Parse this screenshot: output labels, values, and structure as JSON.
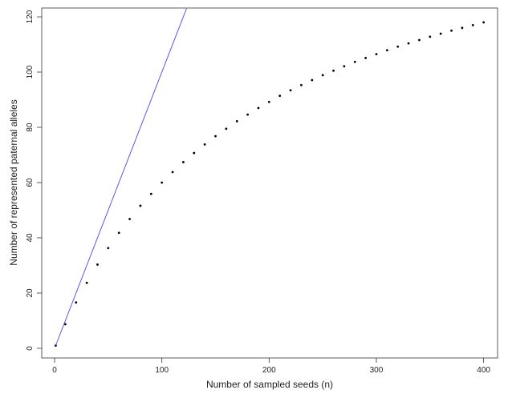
{
  "chart_data": {
    "type": "scatter",
    "x_label": "Number of sampled seeds (n)",
    "y_label": "Number of represented paternal alleles",
    "xlim": [
      -12,
      413
    ],
    "ylim": [
      -3.5,
      123.2
    ],
    "xticks": [
      0,
      100,
      200,
      300,
      400
    ],
    "yticks": [
      0,
      20,
      40,
      60,
      80,
      100,
      120
    ],
    "series": [
      {
        "type": "scatter",
        "color": "#000000",
        "x": [
          1,
          10,
          20,
          30,
          40,
          50,
          60,
          70,
          80,
          90,
          100,
          110,
          120,
          130,
          140,
          150,
          160,
          170,
          180,
          190,
          200,
          210,
          220,
          230,
          240,
          250,
          260,
          270,
          280,
          290,
          300,
          310,
          320,
          330,
          340,
          350,
          360,
          370,
          380,
          390,
          400
        ],
        "values": [
          1.0,
          8.7,
          16.6,
          23.7,
          30.3,
          36.3,
          41.8,
          46.8,
          51.6,
          55.9,
          60.0,
          63.8,
          67.4,
          70.7,
          73.8,
          76.8,
          79.5,
          82.2,
          84.6,
          87.0,
          89.2,
          91.4,
          93.4,
          95.3,
          97.1,
          98.9,
          100.5,
          102.1,
          103.7,
          105.1,
          106.5,
          107.9,
          109.2,
          110.4,
          111.6,
          112.8,
          113.9,
          115.0,
          116.0,
          117.0,
          118.0
        ]
      },
      {
        "type": "line",
        "color": "#4a4ae0",
        "x": [
          1,
          123
        ],
        "values": [
          1,
          123
        ]
      }
    ]
  }
}
